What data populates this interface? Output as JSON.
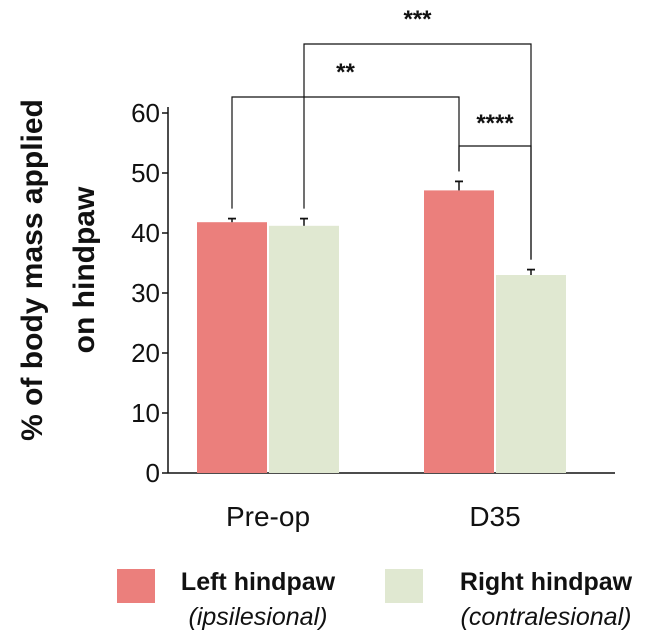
{
  "chart_data": {
    "type": "bar",
    "categories": [
      "Pre-op",
      "D35"
    ],
    "series": [
      {
        "name": "Left hindpaw",
        "subtitle": "(ipsilesional)",
        "color": "#eb7f7c",
        "values": [
          41.8,
          47.1
        ],
        "errors": [
          0.6,
          1.5
        ]
      },
      {
        "name": "Right hindpaw",
        "subtitle": "(contralesional)",
        "color": "#e0e8d1",
        "values": [
          41.2,
          33.0
        ],
        "errors": [
          1.2,
          0.9
        ]
      }
    ],
    "ylabel_lines": [
      "% of body mass applied",
      "on hindpaw"
    ],
    "ylim": [
      0,
      60
    ],
    "yticks": [
      0,
      10,
      20,
      30,
      40,
      50,
      60
    ],
    "significance": [
      {
        "from": [
          0,
          0
        ],
        "to": [
          1,
          0
        ],
        "label": "**"
      },
      {
        "from": [
          0,
          1
        ],
        "to": [
          1,
          1
        ],
        "label": "***"
      },
      {
        "from": [
          1,
          0
        ],
        "to": [
          1,
          1
        ],
        "label": "****"
      }
    ],
    "legend_position": "bottom"
  }
}
